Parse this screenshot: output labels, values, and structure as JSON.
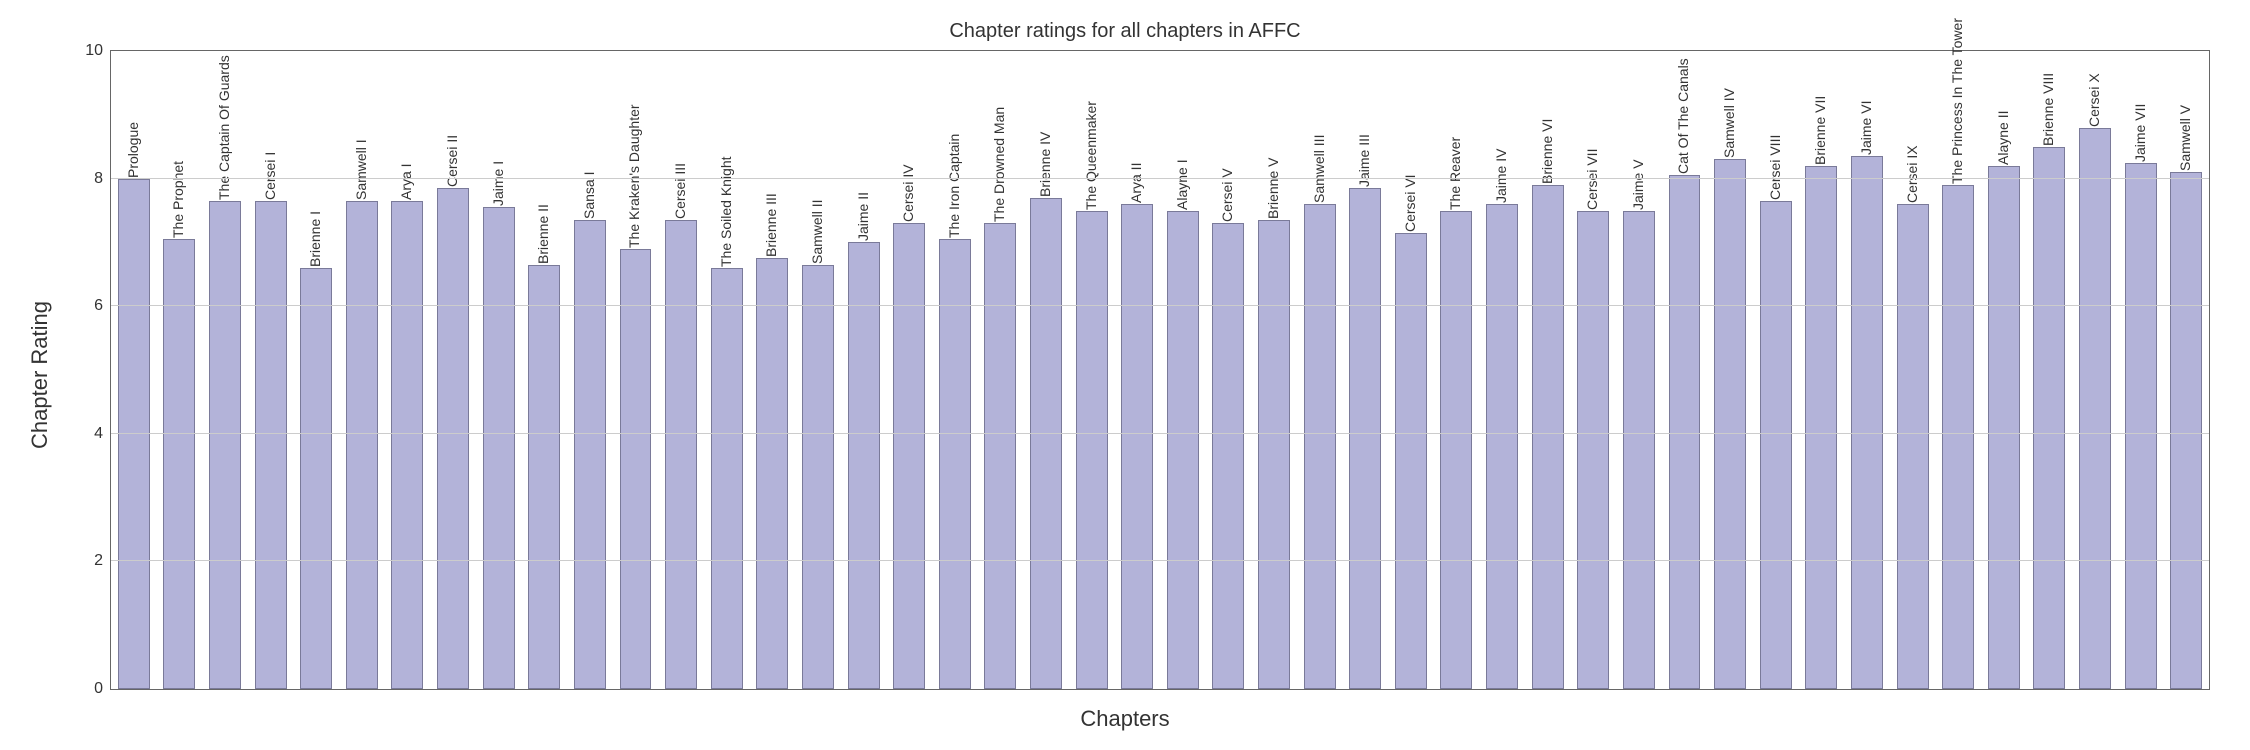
{
  "chart": {
    "type": "bar",
    "title": "Chapter ratings for all chapters in AFFC",
    "title_fontsize": 20,
    "xlabel": "Chapters",
    "ylabel": "Chapter Rating",
    "axis_label_fontsize": 22,
    "ylim": [
      0,
      10
    ],
    "ytick_step": 2,
    "bar_width": 0.7,
    "bar_color": "#b3b3d9",
    "bar_edge_color": "#7a7a99",
    "background_color": "#ffffff",
    "grid_color": "#cccccc",
    "border_color": "#666666",
    "tick_fontsize": 16,
    "bar_label_fontsize": 14,
    "categories": [
      "Prologue",
      "The Prophet",
      "The Captain Of Guards",
      "Cersei I",
      "Brienne I",
      "Samwell I",
      "Arya I",
      "Cersei II",
      "Jaime I",
      "Brienne II",
      "Sansa I",
      "The Kraken's Daughter",
      "Cersei III",
      "The Soiled Knight",
      "Brienne III",
      "Samwell II",
      "Jaime II",
      "Cersei IV",
      "The Iron Captain",
      "The Drowned Man",
      "Brienne IV",
      "The Queenmaker",
      "Arya II",
      "Alayne I",
      "Cersei V",
      "Brienne V",
      "Samwell III",
      "Jaime III",
      "Cersei VI",
      "The Reaver",
      "Jaime IV",
      "Brienne VI",
      "Cersei VII",
      "Jaime V",
      "Cat Of The Canals",
      "Samwell IV",
      "Cersei VIII",
      "Brienne VII",
      "Jaime VI",
      "Cersei IX",
      "The Princess In The Tower",
      "Alayne II",
      "Brienne VIII",
      "Cersei X",
      "Jaime VII",
      "Samwell V"
    ],
    "values": [
      8.0,
      7.05,
      7.65,
      7.65,
      6.6,
      7.65,
      7.65,
      7.85,
      7.55,
      6.65,
      7.35,
      6.9,
      7.35,
      6.6,
      6.75,
      6.65,
      7.0,
      7.3,
      7.05,
      7.3,
      7.7,
      7.5,
      7.6,
      7.5,
      7.3,
      7.35,
      7.6,
      7.85,
      7.15,
      7.5,
      7.6,
      7.9,
      7.5,
      7.5,
      8.05,
      8.3,
      7.65,
      8.2,
      8.35,
      7.6,
      7.9,
      8.2,
      8.5,
      8.8,
      8.25,
      8.1
    ]
  }
}
